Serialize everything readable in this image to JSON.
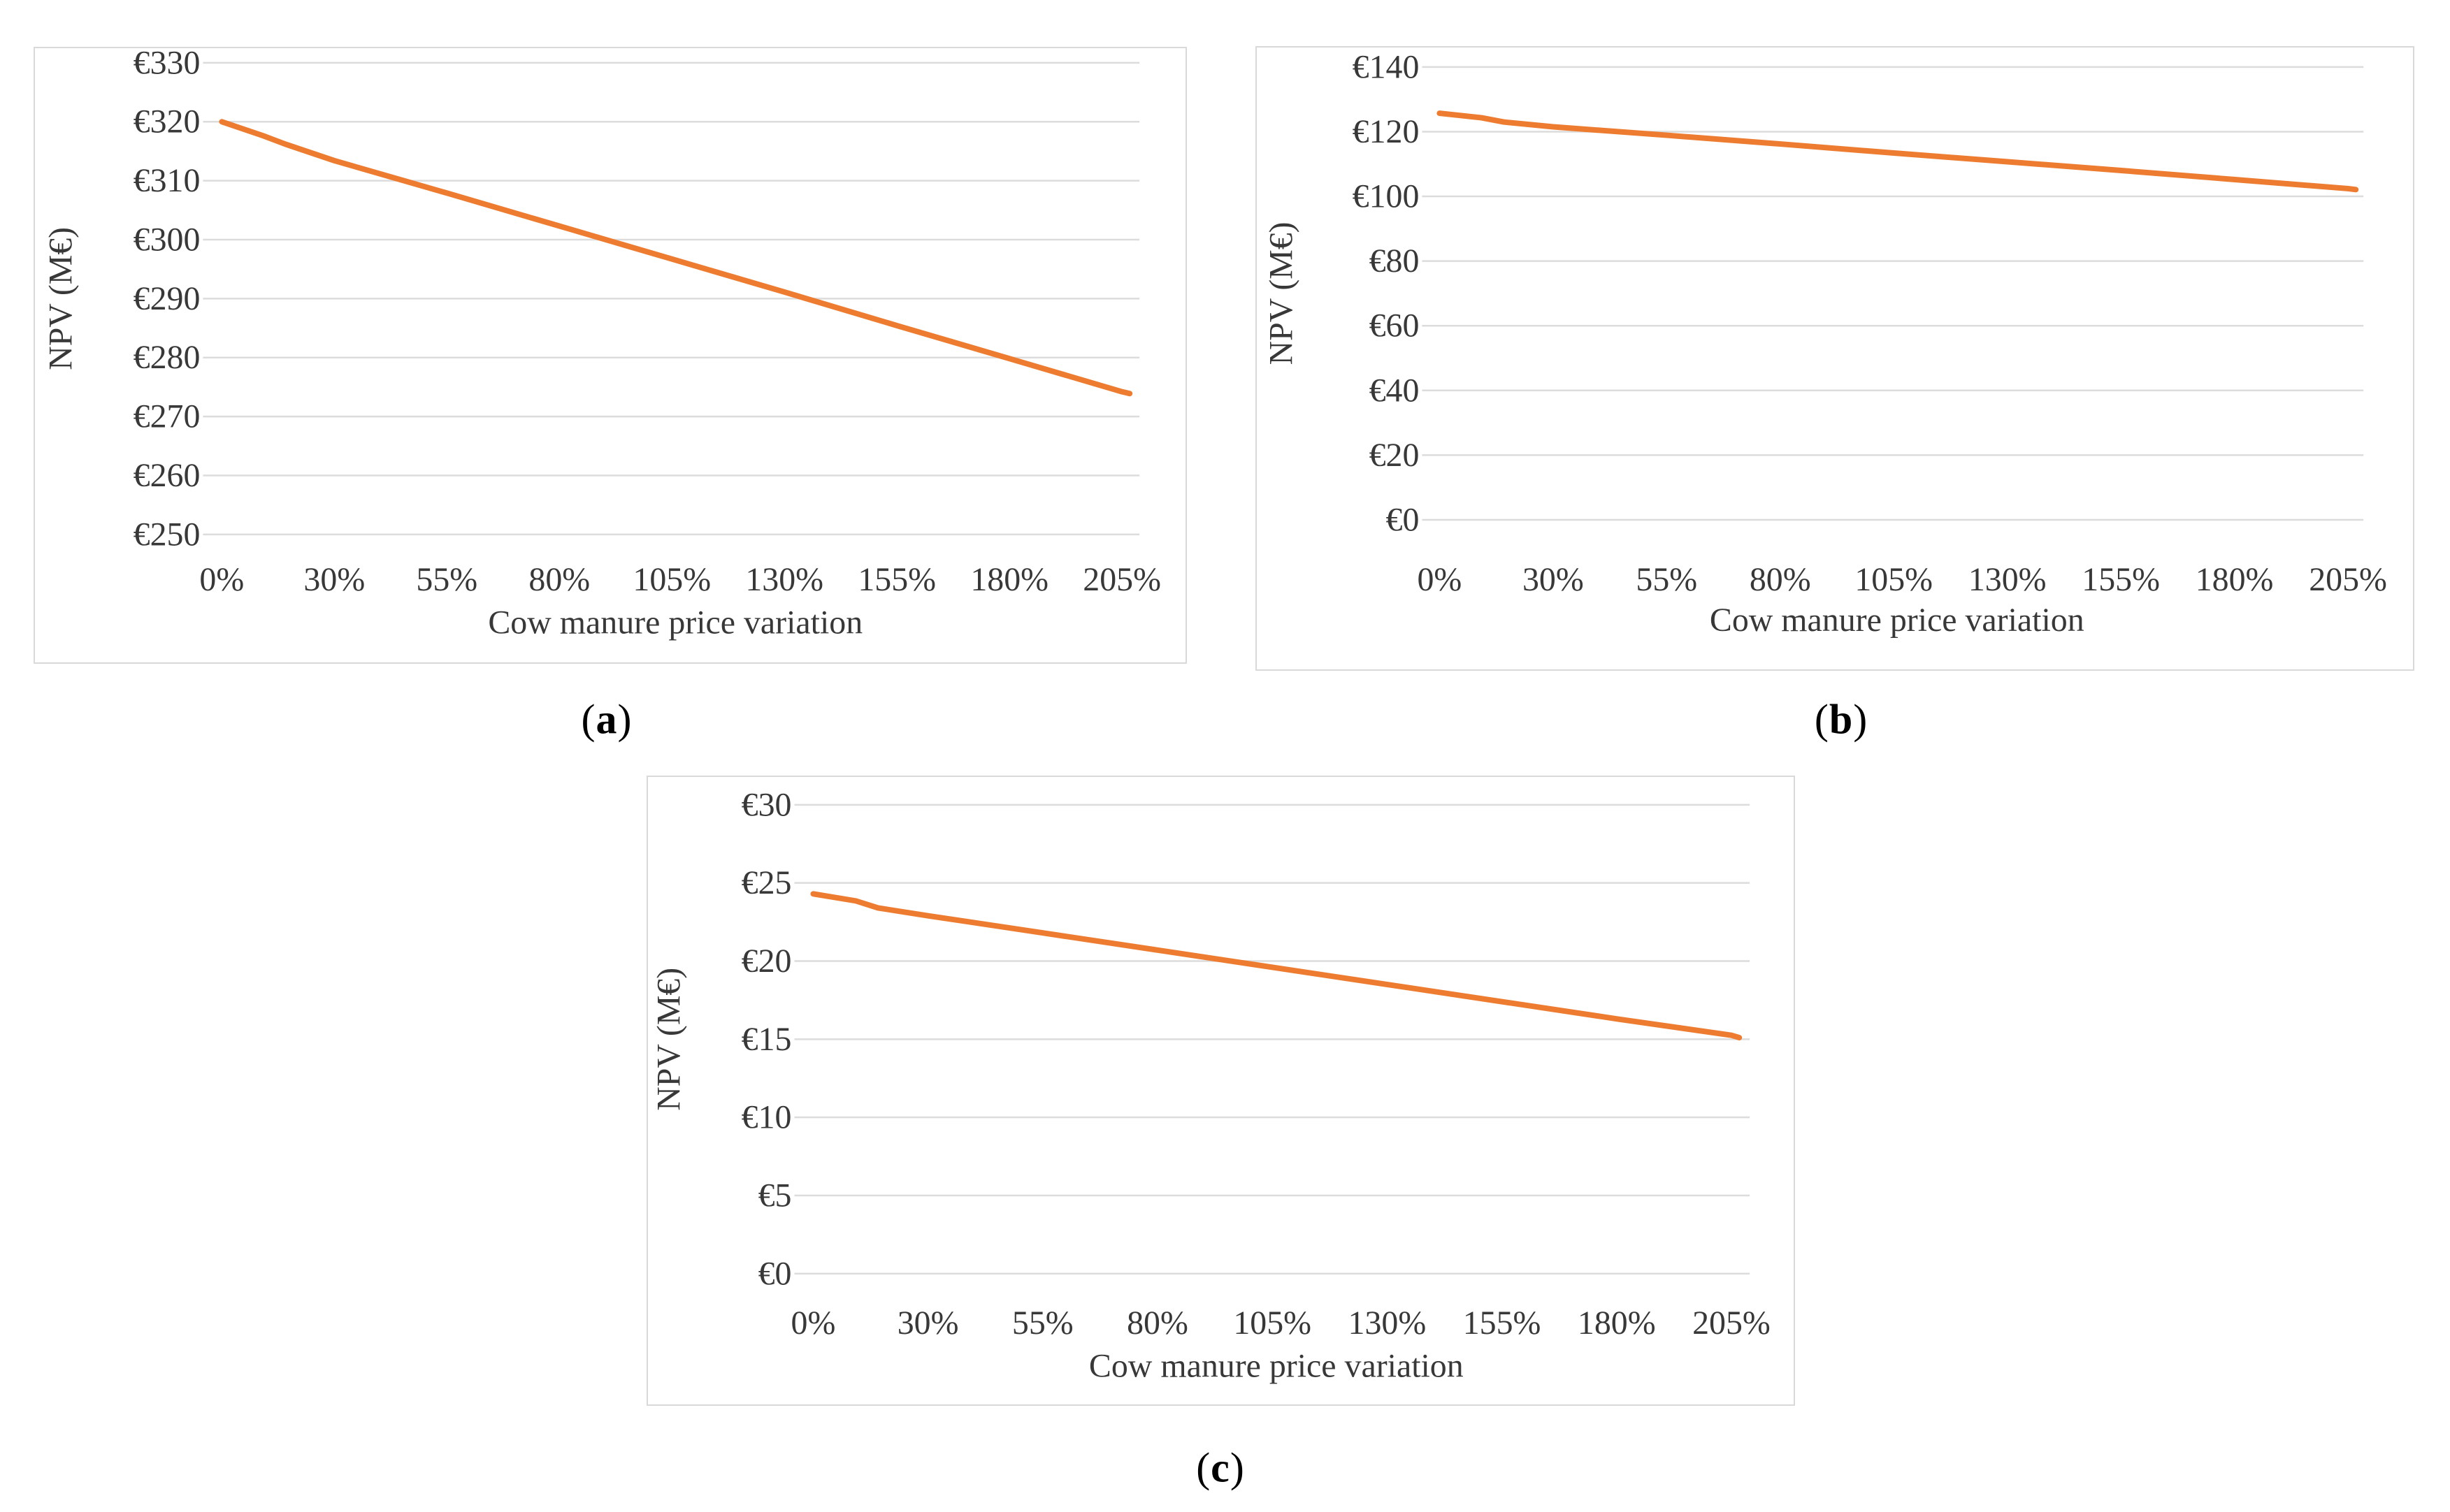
{
  "figure": {
    "captions": [
      {
        "open": "(",
        "letter": "a",
        "close": ")"
      },
      {
        "open": "(",
        "letter": "b",
        "close": ")"
      },
      {
        "open": "(",
        "letter": "c",
        "close": ")"
      }
    ]
  },
  "colors": {
    "series_orange": "#ED7C31",
    "gridline": "#dcdcdc",
    "panel_border": "#d9d9d9",
    "axis_text": "#383838"
  },
  "chart_data": [
    {
      "id": "a",
      "type": "line",
      "title": "",
      "legend": "none",
      "grid": "horizontal",
      "x_axis": {
        "type": "category",
        "title": "Cow manure price variation",
        "tick_labels": [
          "0%",
          "30%",
          "55%",
          "80%",
          "105%",
          "130%",
          "155%",
          "180%",
          "205%"
        ]
      },
      "y_axis": {
        "title": "NPV (M€)",
        "ylim": [
          250,
          330
        ],
        "tick_labels": [
          "€330",
          "€320",
          "€310",
          "€300",
          "€290",
          "€280",
          "€270",
          "€260",
          "€250"
        ],
        "tick_values": [
          330,
          320,
          310,
          300,
          290,
          280,
          270,
          260,
          250
        ]
      },
      "series": [
        {
          "name": "NPV (M€)",
          "color": "#ED7C31",
          "x_desc": [
            "0%",
            "10%",
            "15%",
            "30%",
            "55%",
            "80%",
            "105%",
            "130%",
            "155%",
            "180%",
            "205%",
            "218%"
          ],
          "x_frac": [
            0,
            0.046,
            0.07,
            0.124,
            0.248,
            0.372,
            0.496,
            0.62,
            0.744,
            0.868,
            0.9915,
            1.0
          ],
          "values": [
            320.0,
            317.6,
            316.2,
            313.4,
            307.9,
            302.3,
            296.7,
            291.1,
            285.4,
            279.8,
            274.2,
            273.9
          ]
        }
      ]
    },
    {
      "id": "b",
      "type": "line",
      "title": "",
      "legend": "none",
      "grid": "horizontal",
      "x_axis": {
        "type": "category",
        "title": "Cow manure price variation",
        "tick_labels": [
          "0%",
          "30%",
          "55%",
          "80%",
          "105%",
          "130%",
          "155%",
          "180%",
          "205%"
        ]
      },
      "y_axis": {
        "title": "NPV (M€)",
        "ylim": [
          0,
          140
        ],
        "tick_labels": [
          "€140",
          "€120",
          "€100",
          "€80",
          "€60",
          "€40",
          "€20",
          "€0"
        ],
        "tick_values": [
          140,
          120,
          100,
          80,
          60,
          40,
          20,
          0
        ]
      },
      "series": [
        {
          "name": "NPV (M€)",
          "color": "#ED7C31",
          "x_desc": [
            "0%",
            "10%",
            "15%",
            "30%",
            "55%",
            "80%",
            "105%",
            "130%",
            "155%",
            "180%",
            "205%",
            "218%"
          ],
          "x_frac": [
            0,
            0.046,
            0.07,
            0.124,
            0.248,
            0.372,
            0.496,
            0.62,
            0.744,
            0.868,
            0.9915,
            1.0
          ],
          "values": [
            125.7,
            124.3,
            123.0,
            121.5,
            118.9,
            116.2,
            113.4,
            110.7,
            108.0,
            105.2,
            102.4,
            102.1
          ]
        }
      ]
    },
    {
      "id": "c",
      "type": "line",
      "title": "",
      "legend": "none",
      "grid": "horizontal",
      "x_axis": {
        "type": "category",
        "title": "Cow manure price variation",
        "tick_labels": [
          "0%",
          "30%",
          "55%",
          "80%",
          "105%",
          "130%",
          "155%",
          "180%",
          "205%"
        ]
      },
      "y_axis": {
        "title": "NPV (M€)",
        "ylim": [
          0,
          30
        ],
        "tick_labels": [
          "€30",
          "€25",
          "€20",
          "€15",
          "€10",
          "€5",
          "€0"
        ],
        "tick_values": [
          30,
          25,
          20,
          15,
          10,
          5,
          0
        ]
      },
      "series": [
        {
          "name": "NPV (M€)",
          "color": "#ED7C31",
          "x_desc": [
            "0%",
            "10%",
            "15%",
            "30%",
            "55%",
            "80%",
            "105%",
            "130%",
            "155%",
            "180%",
            "205%",
            "218%"
          ],
          "x_frac": [
            0,
            0.046,
            0.07,
            0.124,
            0.248,
            0.372,
            0.496,
            0.62,
            0.744,
            0.868,
            0.9915,
            1.0
          ],
          "values": [
            24.3,
            23.85,
            23.4,
            22.9,
            21.8,
            20.7,
            19.6,
            18.5,
            17.4,
            16.3,
            15.25,
            15.1
          ]
        }
      ]
    }
  ]
}
